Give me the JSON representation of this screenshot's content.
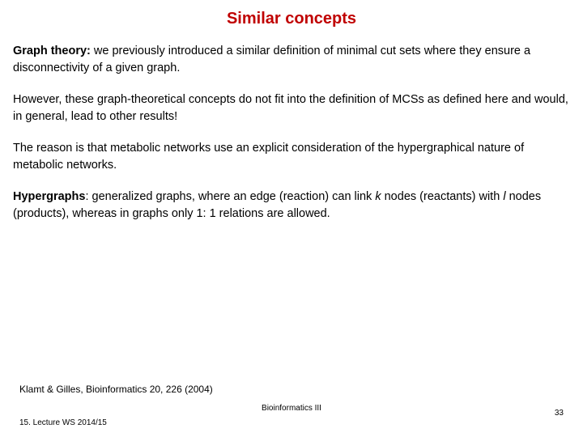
{
  "title": {
    "text": "Similar concepts",
    "color": "#c00000",
    "fontsize": 20
  },
  "body": {
    "fontsize": 14.5,
    "lineheight": 1.45,
    "color": "#000000",
    "p1_lead": "Graph theory:",
    "p1_rest": " we previously introduced a similar definition of minimal cut sets where they ensure a disconnectivity of a given graph.",
    "p2": "However, these graph-theoretical concepts do not fit into the definition of MCSs as defined here and would, in general, lead to other results!",
    "p3": "The reason is that metabolic networks use an explicit consideration of the hypergraphical nature of metabolic networks.",
    "p4_lead": "Hypergraphs",
    "p4_mid1": ": generalized graphs, where an edge (reaction) can link ",
    "p4_k": "k",
    "p4_mid2": " nodes (reactants) with ",
    "p4_l": "l",
    "p4_mid3": " nodes (products), whereas in graphs only 1: 1 relations are allowed."
  },
  "reference": {
    "text": "Klamt & Gilles, Bioinformatics 20, 226 (2004)",
    "fontsize": 12
  },
  "footer_center": {
    "text": "Bioinformatics III",
    "fontsize": 10
  },
  "footer_left": {
    "text": "15. Lecture WS 2014/15",
    "fontsize": 10
  },
  "page_number": {
    "text": "33",
    "fontsize": 10
  },
  "background_color": "#ffffff"
}
